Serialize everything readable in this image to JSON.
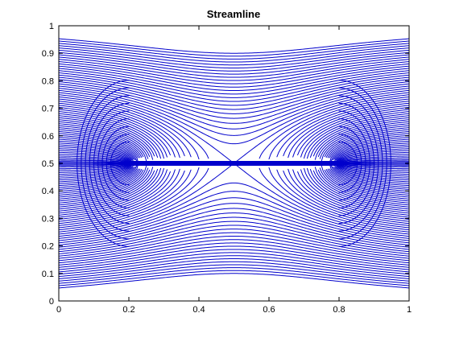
{
  "chart_data": {
    "type": "line",
    "title": "Streamline",
    "xlabel": "",
    "ylabel": "",
    "xlim": [
      0,
      1
    ],
    "ylim": [
      0,
      1
    ],
    "xticks": [
      "0",
      "0.2",
      "0.4",
      "0.6",
      "0.8",
      "1"
    ],
    "yticks": [
      "0",
      "0.1",
      "0.2",
      "0.3",
      "0.4",
      "0.5",
      "0.6",
      "0.7",
      "0.8",
      "0.9",
      "1"
    ],
    "grid": false,
    "line_color": "#0000cc",
    "flow": {
      "description": "streamlines of uniform flow past a flat plate",
      "plate_x": [
        0.2,
        0.8
      ],
      "plate_y": 0.5,
      "stagnation_points": [
        [
          0.2,
          0.5
        ],
        [
          0.8,
          0.5
        ]
      ]
    }
  }
}
